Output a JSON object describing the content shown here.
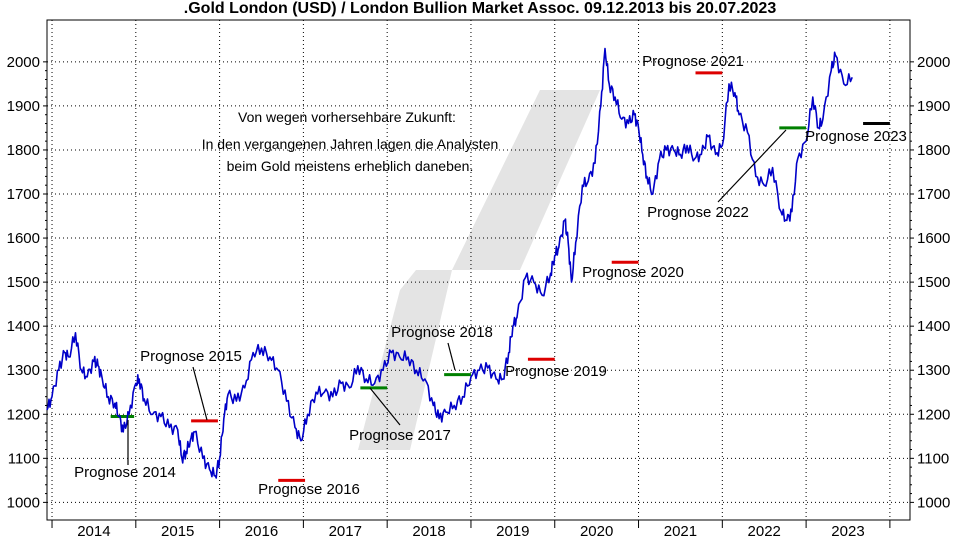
{
  "chart_data": {
    "type": "line",
    "title": ".Gold London (USD) / London Bullion Market Assoc. 09.12.2013 bis 20.07.2023",
    "xlabel": "",
    "ylabel": "",
    "x_ticks": [
      "2014",
      "2015",
      "2016",
      "2017",
      "2018",
      "2019",
      "2020",
      "2021",
      "2022",
      "2023"
    ],
    "y_ticks": [
      "1000",
      "1100",
      "1200",
      "1300",
      "1400",
      "1500",
      "1600",
      "1700",
      "1800",
      "1900",
      "2000"
    ],
    "xlim": [
      2013.94,
      2024.24
    ],
    "ylim": [
      960,
      2095
    ],
    "grid": true,
    "series": [
      {
        "color": "#0000c8",
        "x": [
          2013.94,
          2014.0,
          2014.08,
          2014.15,
          2014.2,
          2014.28,
          2014.35,
          2014.42,
          2014.5,
          2014.55,
          2014.6,
          2014.67,
          2014.75,
          2014.8,
          2014.85,
          2014.92,
          2015.0,
          2015.04,
          2015.1,
          2015.2,
          2015.3,
          2015.4,
          2015.5,
          2015.55,
          2015.6,
          2015.65,
          2015.7,
          2015.8,
          2015.88,
          2015.95,
          2016.0,
          2016.05,
          2016.1,
          2016.2,
          2016.3,
          2016.4,
          2016.5,
          2016.6,
          2016.7,
          2016.8,
          2016.9,
          2016.97,
          2017.05,
          2017.15,
          2017.25,
          2017.35,
          2017.45,
          2017.55,
          2017.65,
          2017.75,
          2017.85,
          2017.95,
          2018.05,
          2018.15,
          2018.25,
          2018.35,
          2018.45,
          2018.55,
          2018.62,
          2018.7,
          2018.8,
          2018.9,
          2019.0,
          2019.1,
          2019.2,
          2019.3,
          2019.38,
          2019.45,
          2019.5,
          2019.55,
          2019.65,
          2019.75,
          2019.85,
          2019.95,
          2020.0,
          2020.05,
          2020.12,
          2020.16,
          2020.2,
          2020.25,
          2020.33,
          2020.4,
          2020.48,
          2020.55,
          2020.6,
          2020.65,
          2020.72,
          2020.8,
          2020.88,
          2020.95,
          2021.0,
          2021.05,
          2021.1,
          2021.17,
          2021.25,
          2021.33,
          2021.42,
          2021.5,
          2021.58,
          2021.67,
          2021.75,
          2021.83,
          2021.92,
          2022.0,
          2022.08,
          2022.15,
          2022.2,
          2022.3,
          2022.4,
          2022.5,
          2022.6,
          2022.7,
          2022.77,
          2022.83,
          2022.9,
          2023.0,
          2023.08,
          2023.15,
          2023.2,
          2023.3,
          2023.35,
          2023.45,
          2023.55
        ],
        "values": [
          1210,
          1240,
          1300,
          1340,
          1330,
          1385,
          1300,
          1285,
          1320,
          1310,
          1280,
          1240,
          1225,
          1195,
          1160,
          1200,
          1270,
          1280,
          1235,
          1200,
          1195,
          1170,
          1165,
          1100,
          1115,
          1140,
          1160,
          1100,
          1075,
          1060,
          1100,
          1190,
          1245,
          1230,
          1260,
          1340,
          1350,
          1330,
          1300,
          1230,
          1170,
          1140,
          1200,
          1250,
          1250,
          1240,
          1270,
          1260,
          1310,
          1280,
          1270,
          1300,
          1340,
          1330,
          1330,
          1300,
          1280,
          1220,
          1190,
          1205,
          1220,
          1240,
          1285,
          1300,
          1305,
          1280,
          1280,
          1340,
          1400,
          1420,
          1510,
          1500,
          1470,
          1520,
          1560,
          1580,
          1640,
          1590,
          1500,
          1590,
          1720,
          1730,
          1770,
          1900,
          2030,
          1950,
          1920,
          1870,
          1860,
          1880,
          1850,
          1790,
          1740,
          1700,
          1780,
          1800,
          1800,
          1790,
          1810,
          1780,
          1790,
          1830,
          1790,
          1810,
          1950,
          1930,
          1880,
          1840,
          1740,
          1720,
          1760,
          1660,
          1640,
          1660,
          1780,
          1820,
          1920,
          1850,
          1870,
          1980,
          2015,
          1950,
          1965
        ]
      }
    ],
    "forecasts": [
      {
        "label": "Prognose 2014",
        "x0": 2014.7,
        "x1": 2014.98,
        "y": 1195,
        "color": "#008000"
      },
      {
        "label": "Prognose 2015",
        "x0": 2015.66,
        "x1": 2015.98,
        "y": 1185,
        "color": "#dd0000"
      },
      {
        "label": "Prognose 2016",
        "x0": 2016.7,
        "x1": 2017.02,
        "y": 1050,
        "color": "#dd0000"
      },
      {
        "label": "Prognose 2017",
        "x0": 2017.68,
        "x1": 2018.0,
        "y": 1260,
        "color": "#008000"
      },
      {
        "label": "Prognose 2018",
        "x0": 2018.68,
        "x1": 2019.0,
        "y": 1290,
        "color": "#008000"
      },
      {
        "label": "Prognose 2019",
        "x0": 2019.68,
        "x1": 2020.0,
        "y": 1325,
        "color": "#dd0000"
      },
      {
        "label": "Prognose 2020",
        "x0": 2020.68,
        "x1": 2021.0,
        "y": 1545,
        "color": "#dd0000"
      },
      {
        "label": "Prognose 2021",
        "x0": 2021.68,
        "x1": 2022.0,
        "y": 1975,
        "color": "#dd0000"
      },
      {
        "label": "Prognose 2022",
        "x0": 2022.68,
        "x1": 2023.0,
        "y": 1850,
        "color": "#008000"
      },
      {
        "label": "Prognose 2023",
        "x0": 2023.68,
        "x1": 2024.0,
        "y": 1860,
        "color": "#000000"
      }
    ],
    "annotation": [
      "Von wegen vorhersehbare Zukunft:",
      "In den vergangenen Jahren lagen die Analysten",
      "beim Gold meistens erheblich daneben."
    ]
  }
}
